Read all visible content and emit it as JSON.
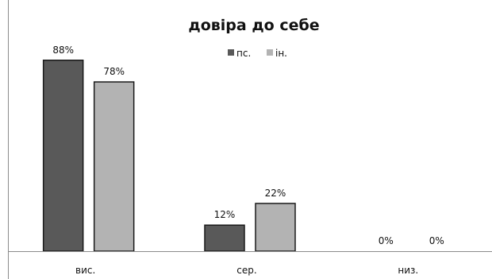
{
  "chart_data": {
    "type": "bar",
    "title": "довіра до себе",
    "categories": [
      "вис.",
      "сер.",
      "низ."
    ],
    "series": [
      {
        "name": "пс.",
        "values": [
          88,
          12,
          0
        ],
        "color": "#595959"
      },
      {
        "name": "ін.",
        "values": [
          78,
          22,
          0
        ],
        "color": "#b3b3b3"
      }
    ],
    "value_suffix": "%",
    "ylim": [
      0,
      100
    ],
    "grid": false,
    "legend_position": "top-center",
    "xlabel": "",
    "ylabel": ""
  }
}
